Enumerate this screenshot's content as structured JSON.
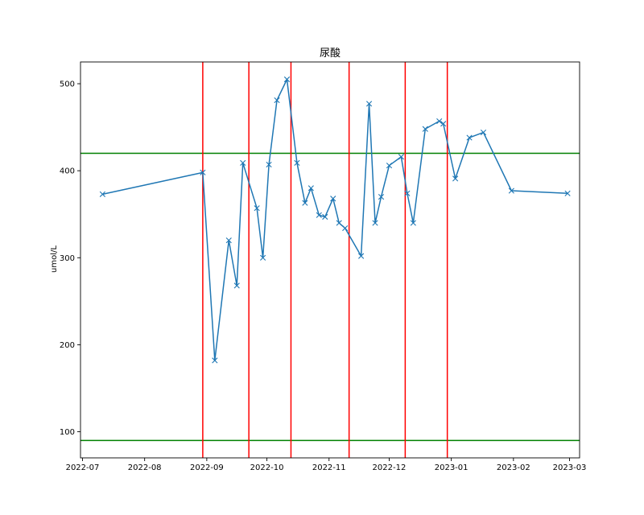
{
  "chart_data": {
    "type": "line",
    "title": "尿酸",
    "xlabel": "",
    "ylabel": "umol/L",
    "x_axis_type": "date",
    "xlim": [
      "2022-06-30",
      "2023-03-06"
    ],
    "ylim": [
      70,
      525
    ],
    "x_ticks": [
      "2022-07",
      "2022-08",
      "2022-09",
      "2022-10",
      "2022-11",
      "2022-12",
      "2023-01",
      "2023-02",
      "2023-03"
    ],
    "x_tick_dates": [
      "2022-07-01",
      "2022-08-01",
      "2022-09-01",
      "2022-10-01",
      "2022-11-01",
      "2022-12-01",
      "2023-01-01",
      "2023-02-01",
      "2023-03-01"
    ],
    "y_ticks": [
      100,
      200,
      300,
      400,
      500
    ],
    "grid": false,
    "series": [
      {
        "marker": "x",
        "color": "#1f77b4",
        "points": [
          {
            "x": "2022-07-11",
            "y": 373
          },
          {
            "x": "2022-08-30",
            "y": 398
          },
          {
            "x": "2022-09-05",
            "y": 182
          },
          {
            "x": "2022-09-12",
            "y": 320
          },
          {
            "x": "2022-09-16",
            "y": 268
          },
          {
            "x": "2022-09-19",
            "y": 409
          },
          {
            "x": "2022-09-26",
            "y": 357
          },
          {
            "x": "2022-09-29",
            "y": 300
          },
          {
            "x": "2022-10-02",
            "y": 407
          },
          {
            "x": "2022-10-06",
            "y": 481
          },
          {
            "x": "2022-10-11",
            "y": 505
          },
          {
            "x": "2022-10-16",
            "y": 409
          },
          {
            "x": "2022-10-20",
            "y": 363
          },
          {
            "x": "2022-10-23",
            "y": 380
          },
          {
            "x": "2022-10-27",
            "y": 349
          },
          {
            "x": "2022-10-30",
            "y": 347
          },
          {
            "x": "2022-11-03",
            "y": 368
          },
          {
            "x": "2022-11-06",
            "y": 340
          },
          {
            "x": "2022-11-09",
            "y": 334
          },
          {
            "x": "2022-11-17",
            "y": 302
          },
          {
            "x": "2022-11-21",
            "y": 477
          },
          {
            "x": "2022-11-24",
            "y": 340
          },
          {
            "x": "2022-11-27",
            "y": 370
          },
          {
            "x": "2022-12-01",
            "y": 406
          },
          {
            "x": "2022-12-07",
            "y": 416
          },
          {
            "x": "2022-12-10",
            "y": 374
          },
          {
            "x": "2022-12-13",
            "y": 340
          },
          {
            "x": "2022-12-19",
            "y": 448
          },
          {
            "x": "2022-12-26",
            "y": 457
          },
          {
            "x": "2022-12-28",
            "y": 454
          },
          {
            "x": "2023-01-03",
            "y": 391
          },
          {
            "x": "2023-01-10",
            "y": 438
          },
          {
            "x": "2023-01-17",
            "y": 444
          },
          {
            "x": "2023-01-31",
            "y": 377
          },
          {
            "x": "2023-02-28",
            "y": 374
          }
        ]
      }
    ],
    "hlines": [
      {
        "y": 420,
        "color": "#008000"
      },
      {
        "y": 90,
        "color": "#008000"
      }
    ],
    "vlines": [
      {
        "x": "2022-08-30",
        "color": "#ff0000"
      },
      {
        "x": "2022-09-22",
        "color": "#ff0000"
      },
      {
        "x": "2022-10-13",
        "color": "#ff0000"
      },
      {
        "x": "2022-11-11",
        "color": "#ff0000"
      },
      {
        "x": "2022-12-09",
        "color": "#ff0000"
      },
      {
        "x": "2022-12-30",
        "color": "#ff0000"
      }
    ]
  }
}
